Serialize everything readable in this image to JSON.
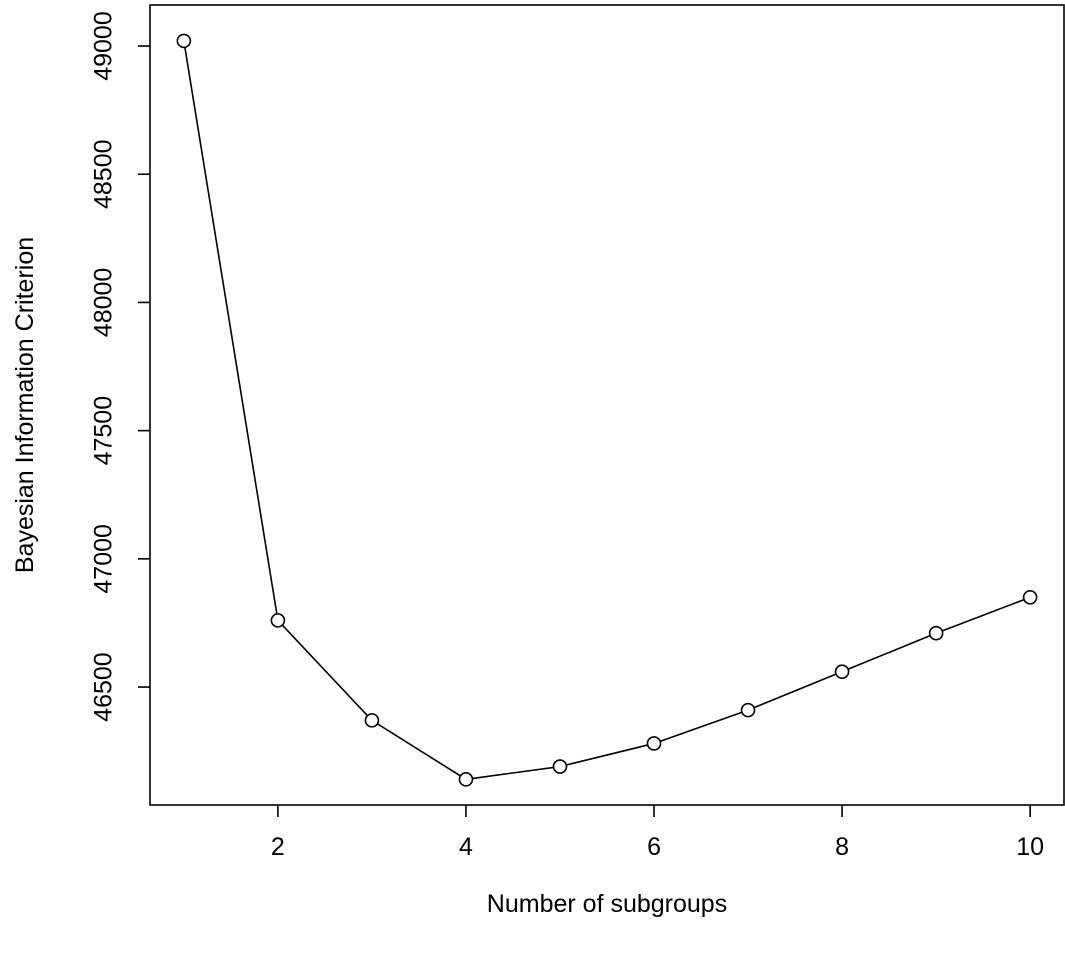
{
  "chart_data": {
    "type": "line",
    "title": "",
    "xlabel": "Number of subgroups",
    "ylabel": "Bayesian Information Criterion",
    "x": [
      1,
      2,
      3,
      4,
      5,
      6,
      7,
      8,
      9,
      10
    ],
    "y": [
      49020,
      46760,
      46370,
      46140,
      46190,
      46280,
      46410,
      46560,
      46710,
      46850
    ],
    "xticks": [
      2,
      4,
      6,
      8,
      10
    ],
    "yticks": [
      46500,
      47000,
      47500,
      48000,
      48500,
      49000
    ],
    "xlim": [
      0.64,
      10.36
    ],
    "ylim": [
      46040,
      49160
    ],
    "grid": false,
    "legend": "none",
    "marker": "open-circle",
    "line_color": "#000000"
  }
}
